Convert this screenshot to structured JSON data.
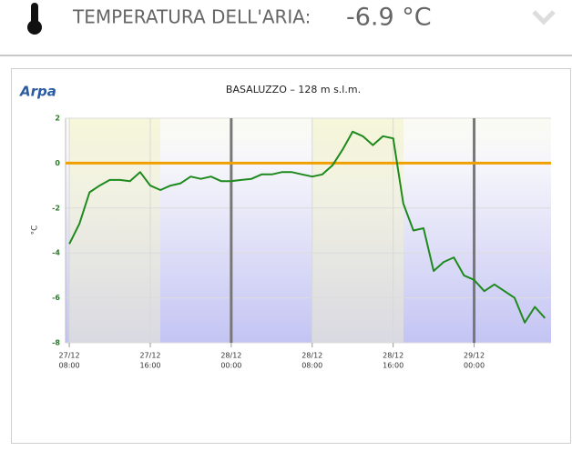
{
  "header": {
    "title": "TEMPERATURA DELL'ARIA:",
    "value": "-6.9 °C"
  },
  "logo": "Arpa",
  "chart_data": {
    "type": "line",
    "title": "BASALUZZO – 128 m s.l.m.",
    "y_label": "°C",
    "x": [
      "27/12 08:00",
      "27/12 09:00",
      "27/12 10:00",
      "27/12 11:00",
      "27/12 12:00",
      "27/12 13:00",
      "27/12 14:00",
      "27/12 15:00",
      "27/12 16:00",
      "27/12 17:00",
      "27/12 18:00",
      "27/12 19:00",
      "27/12 20:00",
      "27/12 21:00",
      "27/12 22:00",
      "27/12 23:00",
      "28/12 00:00",
      "28/12 01:00",
      "28/12 02:00",
      "28/12 03:00",
      "28/12 04:00",
      "28/12 05:00",
      "28/12 06:00",
      "28/12 07:00",
      "28/12 08:00",
      "28/12 09:00",
      "28/12 10:00",
      "28/12 11:00",
      "28/12 12:00",
      "28/12 13:00",
      "28/12 14:00",
      "28/12 15:00",
      "28/12 16:00",
      "28/12 17:00",
      "28/12 18:00",
      "28/12 19:00",
      "28/12 20:00",
      "28/12 21:00",
      "28/12 22:00",
      "28/12 23:00",
      "29/12 00:00",
      "29/12 01:00",
      "29/12 02:00",
      "29/12 03:00",
      "29/12 04:00",
      "29/12 05:00",
      "29/12 06:00",
      "29/12 07:00"
    ],
    "series": [
      {
        "name": "Temperatura",
        "color": "#1e8a1e",
        "values": [
          -3.6,
          -2.7,
          -1.3,
          -1.0,
          -0.75,
          -0.75,
          -0.8,
          -0.4,
          -1.0,
          -1.2,
          -1.0,
          -0.9,
          -0.6,
          -0.7,
          -0.6,
          -0.8,
          -0.8,
          -0.75,
          -0.7,
          -0.5,
          -0.5,
          -0.4,
          -0.4,
          -0.5,
          -0.6,
          -0.5,
          -0.1,
          0.6,
          1.4,
          1.2,
          0.8,
          1.2,
          1.1,
          -1.8,
          -3.0,
          -2.9,
          -4.8,
          -4.4,
          -4.2,
          -5.0,
          -5.2,
          -5.7,
          -5.4,
          -5.7,
          -6.0,
          -7.1,
          -6.4,
          -6.9
        ]
      }
    ],
    "xlim": [
      "27/12 07:38",
      "29/12 07:36"
    ],
    "xticks": [
      {
        "date": "27/12",
        "time": "08:00"
      },
      {
        "date": "27/12",
        "time": "16:00"
      },
      {
        "date": "28/12",
        "time": "00:00"
      },
      {
        "date": "28/12",
        "time": "08:00"
      },
      {
        "date": "28/12",
        "time": "16:00"
      },
      {
        "date": "29/12",
        "time": "00:00"
      }
    ],
    "ylim": [
      -8,
      2
    ],
    "yticks": [
      -8,
      -6,
      -4,
      -2,
      0,
      2
    ],
    "grid": true,
    "reference_line": {
      "value": 0,
      "color": "#f0a000"
    }
  }
}
